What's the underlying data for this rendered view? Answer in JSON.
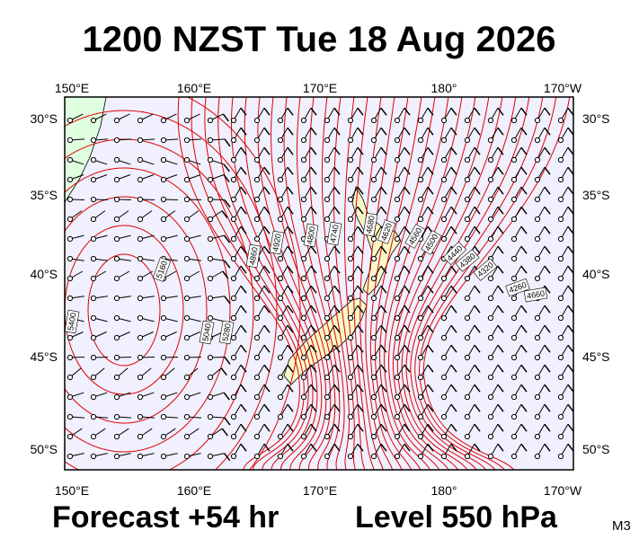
{
  "title": "1200 NZST Tue 18 Aug 2026",
  "footer_left": "Forecast +54 hr",
  "footer_right": "Level 550 hPa",
  "corner_label": "M3",
  "longitude_labels": [
    "150°E",
    "160°E",
    "170°E",
    "180°",
    "170°W"
  ],
  "latitude_labels": [
    "30°S",
    "35°S",
    "40°S",
    "45°S",
    "50°S"
  ],
  "contour_labels": [
    "5160",
    "5280",
    "5040",
    "5400",
    "4860",
    "4920",
    "4800",
    "4740",
    "4680",
    "4620",
    "4560",
    "4500",
    "4440",
    "4380",
    "4320",
    "4260",
    "4660"
  ]
}
